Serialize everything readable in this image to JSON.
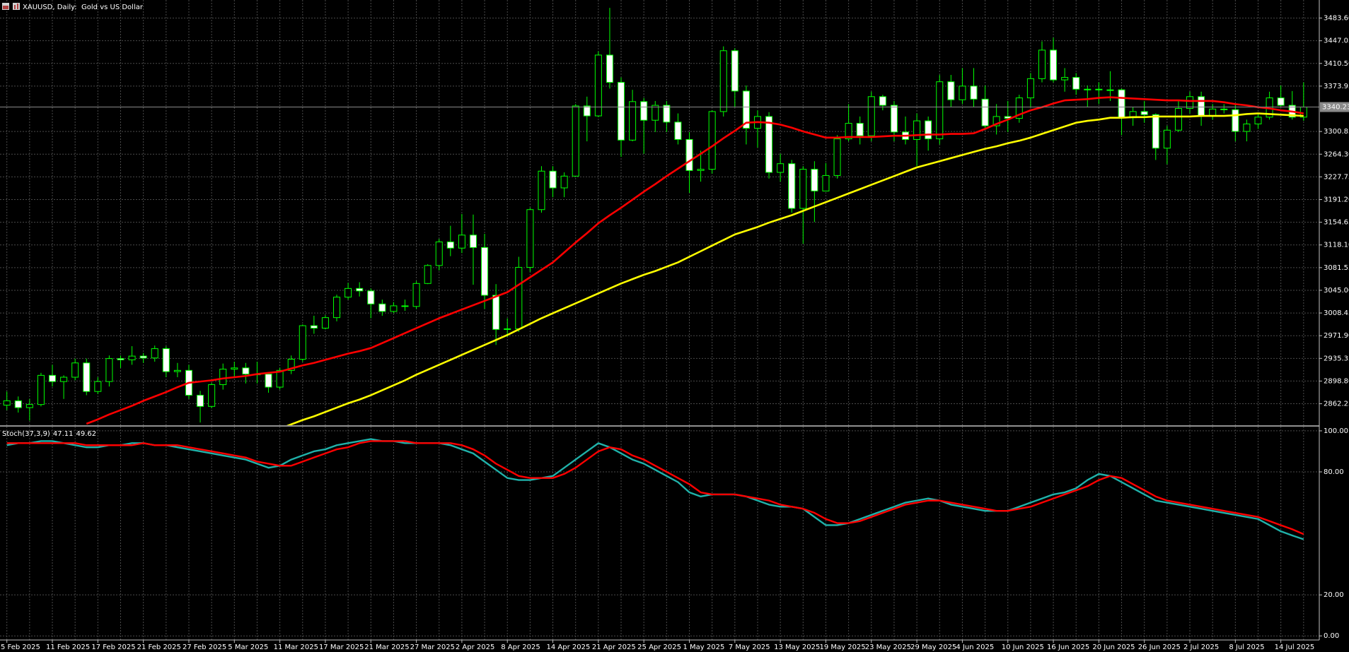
{
  "chart_data": [
    {
      "type": "candlestick",
      "title": "XAUUSD, Daily:  Gold vs US Dollar",
      "categories": [
        "5 Feb 2025",
        null,
        null,
        null,
        "11 Feb 2025",
        null,
        null,
        null,
        "17 Feb 2025",
        null,
        null,
        null,
        "21 Feb 2025",
        null,
        null,
        null,
        "27 Feb 2025",
        null,
        null,
        null,
        "5 Mar 2025",
        null,
        null,
        null,
        "11 Mar 2025",
        null,
        null,
        null,
        "17 Mar 2025",
        null,
        null,
        null,
        "21 Mar 2025",
        null,
        null,
        null,
        "27 Mar 2025",
        null,
        null,
        null,
        "2 Apr 2025",
        null,
        null,
        null,
        "8 Apr 2025",
        null,
        null,
        null,
        "14 Apr 2025",
        null,
        null,
        null,
        "21 Apr 2025",
        null,
        null,
        null,
        "25 Apr 2025",
        null,
        null,
        null,
        "1 May 2025",
        null,
        null,
        null,
        "7 May 2025",
        null,
        null,
        null,
        "13 May 2025",
        null,
        null,
        null,
        "19 May 2025",
        null,
        null,
        null,
        "23 May 2025",
        null,
        null,
        null,
        "29 May 2025",
        null,
        null,
        null,
        "4 Jun 2025",
        null,
        null,
        null,
        "10 Jun 2025",
        null,
        null,
        null,
        "16 Jun 2025",
        null,
        null,
        null,
        "20 Jun 2025",
        null,
        null,
        null,
        "26 Jun 2025",
        null,
        null,
        null,
        "2 Jul 2025",
        null,
        null,
        null,
        "8 Jul 2025",
        null,
        null,
        null,
        "14 Jul 2025",
        null,
        null
      ],
      "open": [
        2860,
        2867,
        2856,
        2861,
        2908,
        2898,
        2905,
        2928,
        2882,
        2898,
        2935,
        2933,
        2939,
        2936,
        2951,
        2914,
        2916,
        2876,
        2858,
        2893,
        2918,
        2920,
        2910,
        2910,
        2889,
        2916,
        2934,
        2988,
        2984,
        3001,
        3034,
        3048,
        3044,
        3023,
        3011,
        3020,
        3019,
        3056,
        3085,
        3123,
        3113,
        3134,
        3114,
        3037,
        2982,
        2983,
        3082,
        3175,
        3237,
        3210,
        3229,
        3342,
        3326,
        3424,
        3380,
        3287,
        3349,
        3319,
        3343,
        3316,
        3288,
        3238,
        3240,
        3333,
        3431,
        3366,
        3306,
        3325,
        3235,
        3249,
        3177,
        3240,
        3205,
        3230,
        3289,
        3314,
        3294,
        3357,
        3343,
        3300,
        3288,
        3318,
        3289,
        3381,
        3352,
        3374,
        3353,
        3310,
        3325,
        3322,
        3355,
        3386,
        3432,
        3384,
        3388,
        3369,
        3369,
        3368,
        3368,
        3323,
        3333,
        3328,
        3274,
        3303,
        3338,
        3357,
        3326,
        3337,
        3336,
        3301,
        3313,
        3324,
        3355,
        3343,
        3324
      ],
      "high": [
        2882,
        2874,
        2870,
        2912,
        2925,
        2908,
        2935,
        2935,
        2905,
        2940,
        2940,
        2955,
        2944,
        2956,
        2955,
        2928,
        2925,
        2883,
        2896,
        2927,
        2930,
        2928,
        2930,
        2913,
        2920,
        2940,
        2990,
        3004,
        3005,
        3038,
        3057,
        3058,
        3048,
        3030,
        3026,
        3030,
        3060,
        3087,
        3128,
        3149,
        3168,
        3167,
        3136,
        3055,
        3000,
        3099,
        3178,
        3245,
        3245,
        3235,
        3345,
        3357,
        3430,
        3500,
        3388,
        3368,
        3355,
        3350,
        3350,
        3330,
        3300,
        3270,
        3335,
        3438,
        3435,
        3375,
        3335,
        3332,
        3265,
        3255,
        3245,
        3253,
        3250,
        3295,
        3345,
        3325,
        3365,
        3360,
        3350,
        3325,
        3330,
        3325,
        3392,
        3392,
        3403,
        3403,
        3375,
        3345,
        3350,
        3360,
        3395,
        3446,
        3452,
        3403,
        3395,
        3375,
        3380,
        3398,
        3370,
        3340,
        3350,
        3330,
        3310,
        3350,
        3365,
        3365,
        3345,
        3345,
        3345,
        3320,
        3330,
        3365,
        3375,
        3366,
        3380
      ],
      "low": [
        2852,
        2848,
        2835,
        2858,
        2890,
        2870,
        2900,
        2876,
        2878,
        2890,
        2920,
        2925,
        2928,
        2930,
        2905,
        2905,
        2870,
        2832,
        2855,
        2885,
        2905,
        2895,
        2895,
        2880,
        2885,
        2910,
        2930,
        2975,
        2982,
        2995,
        3030,
        3035,
        3000,
        3004,
        3008,
        3012,
        3015,
        3055,
        3077,
        3100,
        3105,
        3054,
        3015,
        2957,
        2970,
        2978,
        3075,
        3170,
        3195,
        3195,
        3228,
        3285,
        3324,
        3370,
        3260,
        3285,
        3265,
        3300,
        3300,
        3280,
        3202,
        3220,
        3233,
        3325,
        3340,
        3280,
        3275,
        3225,
        3220,
        3170,
        3120,
        3155,
        3205,
        3225,
        3285,
        3280,
        3285,
        3335,
        3285,
        3280,
        3245,
        3270,
        3280,
        3340,
        3345,
        3340,
        3305,
        3296,
        3300,
        3315,
        3340,
        3380,
        3380,
        3365,
        3360,
        3340,
        3345,
        3350,
        3295,
        3310,
        3315,
        3255,
        3248,
        3300,
        3330,
        3310,
        3320,
        3330,
        3285,
        3285,
        3305,
        3320,
        3340,
        3320,
        3318
      ],
      "close": [
        2867,
        2856,
        2861,
        2908,
        2898,
        2905,
        2928,
        2882,
        2898,
        2935,
        2933,
        2939,
        2936,
        2951,
        2914,
        2916,
        2876,
        2858,
        2893,
        2918,
        2920,
        2910,
        2910,
        2889,
        2916,
        2934,
        2988,
        2984,
        3001,
        3034,
        3048,
        3044,
        3023,
        3011,
        3020,
        3019,
        3056,
        3085,
        3123,
        3113,
        3134,
        3114,
        3037,
        2982,
        2983,
        3082,
        3175,
        3237,
        3210,
        3229,
        3342,
        3326,
        3424,
        3380,
        3287,
        3349,
        3319,
        3343,
        3316,
        3288,
        3238,
        3240,
        3333,
        3431,
        3366,
        3306,
        3325,
        3235,
        3249,
        3177,
        3240,
        3205,
        3230,
        3289,
        3314,
        3294,
        3357,
        3343,
        3300,
        3288,
        3318,
        3289,
        3381,
        3352,
        3374,
        3353,
        3310,
        3325,
        3322,
        3355,
        3386,
        3432,
        3384,
        3388,
        3369,
        3369,
        3368,
        3368,
        3323,
        3333,
        3328,
        3274,
        3303,
        3338,
        3357,
        3326,
        3337,
        3336,
        3301,
        3313,
        3324,
        3355,
        3343,
        3324,
        3340.23
      ],
      "up_color": "#000000",
      "down_color": "#ffffff",
      "wick_color": "#00ff00",
      "series": [
        {
          "color": "#ff0000",
          "values": [
            null,
            null,
            null,
            null,
            null,
            null,
            null,
            2830,
            2837,
            2845,
            2852,
            2859,
            2867,
            2874,
            2881,
            2889,
            2896,
            2898,
            2900,
            2903,
            2905,
            2907,
            2910,
            2912,
            2914,
            2919,
            2924,
            2928,
            2933,
            2938,
            2943,
            2947,
            2952,
            2960,
            2968,
            2976,
            2984,
            2992,
            3000,
            3007,
            3014,
            3021,
            3028,
            3035,
            3042,
            3054,
            3066,
            3078,
            3090,
            3106,
            3122,
            3137,
            3153,
            3166,
            3178,
            3191,
            3204,
            3216,
            3229,
            3241,
            3253,
            3265,
            3277,
            3290,
            3302,
            3315,
            3316,
            3315,
            3312,
            3307,
            3301,
            3296,
            3291,
            3291,
            3292,
            3292,
            3292,
            3293,
            3294,
            3294,
            3295,
            3296,
            3296,
            3297,
            3297,
            3298,
            3305,
            3313,
            3320,
            3328,
            3335,
            3340,
            3346,
            3351,
            3352,
            3353,
            3355,
            3356,
            3355,
            3354,
            3353,
            3352,
            3351,
            3351,
            3350,
            3350,
            3350,
            3348,
            3345,
            3343,
            3340,
            3338,
            3335,
            3333,
            3330
          ]
        },
        {
          "color": "#ffff00",
          "values": [
            null,
            null,
            null,
            null,
            null,
            null,
            null,
            null,
            null,
            null,
            null,
            null,
            null,
            null,
            null,
            null,
            null,
            null,
            null,
            null,
            null,
            null,
            null,
            null,
            2822,
            2829,
            2836,
            2842,
            2849,
            2856,
            2863,
            2869,
            2876,
            2884,
            2892,
            2900,
            2909,
            2917,
            2925,
            2933,
            2941,
            2949,
            2957,
            2965,
            2973,
            2982,
            2991,
            3000,
            3008,
            3016,
            3024,
            3032,
            3040,
            3048,
            3056,
            3063,
            3070,
            3076,
            3083,
            3090,
            3099,
            3108,
            3117,
            3126,
            3135,
            3141,
            3147,
            3154,
            3160,
            3166,
            3173,
            3180,
            3187,
            3194,
            3201,
            3208,
            3215,
            3222,
            3229,
            3236,
            3243,
            3248,
            3253,
            3258,
            3263,
            3268,
            3273,
            3277,
            3282,
            3286,
            3291,
            3297,
            3303,
            3309,
            3315,
            3318,
            3320,
            3323,
            3323,
            3324,
            3324,
            3325,
            3325,
            3325,
            3325,
            3326,
            3326,
            3326,
            3327,
            3329,
            3330,
            3329,
            3328,
            3327,
            3326
          ]
        }
      ],
      "ylim": [
        2827.6,
        3512.7
      ],
      "yticks": [
        {
          "value": 2862.25,
          "label": "2862.25"
        },
        {
          "value": 2898.8,
          "label": "2898.80"
        },
        {
          "value": 2935.35,
          "label": "2935.35"
        },
        {
          "value": 2971.9,
          "label": "2971.90"
        },
        {
          "value": 3008.45,
          "label": "3008.45"
        },
        {
          "value": 3045,
          "label": "3045.00"
        },
        {
          "value": 3081.55,
          "label": "3081.55"
        },
        {
          "value": 3118.1,
          "label": "3118.10"
        },
        {
          "value": 3154.65,
          "label": "3154.65"
        },
        {
          "value": 3191.2,
          "label": "3191.20"
        },
        {
          "value": 3227.75,
          "label": "3227.75"
        },
        {
          "value": 3264.3,
          "label": "3264.30"
        },
        {
          "value": 3300.85,
          "label": "3300.85"
        },
        {
          "value": 3373.95,
          "label": "3373.95"
        },
        {
          "value": 3410.5,
          "label": "3410.50"
        },
        {
          "value": 3447.05,
          "label": "3447.05"
        },
        {
          "value": 3483.6,
          "label": "3483.60"
        }
      ],
      "grid": true
    },
    {
      "type": "line",
      "title": "Stoch(37,3,9)",
      "series": [
        {
          "color": "#20b2aa",
          "values": [
            93,
            94,
            94,
            95,
            95,
            94,
            93,
            92,
            92,
            93,
            93,
            94,
            94,
            93,
            93,
            92,
            91,
            90,
            89,
            88,
            87,
            86,
            84,
            82,
            83,
            86,
            88,
            90,
            91,
            93,
            94,
            95,
            96,
            95,
            95,
            94,
            94,
            94,
            94,
            93,
            91,
            89,
            85,
            81,
            77,
            76,
            76,
            77,
            78,
            82,
            86,
            90,
            94,
            92,
            89,
            86,
            84,
            81,
            78,
            75,
            70,
            68,
            69,
            69,
            69,
            68,
            66,
            64,
            63,
            63,
            62,
            58,
            54,
            54,
            55,
            57,
            59,
            61,
            63,
            65,
            66,
            67,
            66,
            64,
            63,
            62,
            61,
            61,
            61,
            63,
            65,
            67,
            69,
            70,
            72,
            76,
            79,
            78,
            75,
            72,
            69,
            66,
            65,
            64,
            63,
            62,
            61,
            60,
            59,
            58,
            57,
            54,
            51,
            49,
            47.11
          ]
        },
        {
          "color": "#ff0000",
          "values": [
            94,
            94,
            94,
            94,
            94,
            94,
            94,
            93,
            93,
            93,
            93,
            93,
            94,
            93,
            93,
            93,
            92,
            91,
            90,
            89,
            88,
            87,
            85,
            84,
            83,
            83,
            85,
            87,
            89,
            91,
            92,
            94,
            95,
            95,
            95,
            95,
            94,
            94,
            94,
            94,
            93,
            91,
            88,
            84,
            81,
            78,
            77,
            77,
            77,
            79,
            82,
            86,
            90,
            92,
            91,
            88,
            86,
            83,
            80,
            77,
            74,
            70,
            69,
            69,
            69,
            68,
            67,
            66,
            64,
            63,
            62,
            60,
            57,
            55,
            55,
            56,
            58,
            60,
            62,
            64,
            65,
            66,
            66,
            65,
            64,
            63,
            62,
            61,
            61,
            62,
            63,
            65,
            67,
            69,
            71,
            73,
            76,
            78,
            77,
            74,
            71,
            68,
            66,
            65,
            64,
            63,
            62,
            61,
            60,
            59,
            58,
            56,
            54,
            52,
            49.62
          ]
        }
      ],
      "ylim": [
        -2,
        101.7
      ],
      "yticks": [
        {
          "value": 0,
          "label": "0.00"
        },
        {
          "value": 20,
          "label": "20.00"
        },
        {
          "value": 80,
          "label": "80.00"
        },
        {
          "value": 100,
          "label": "100.00"
        }
      ],
      "grid": true
    }
  ]
}
